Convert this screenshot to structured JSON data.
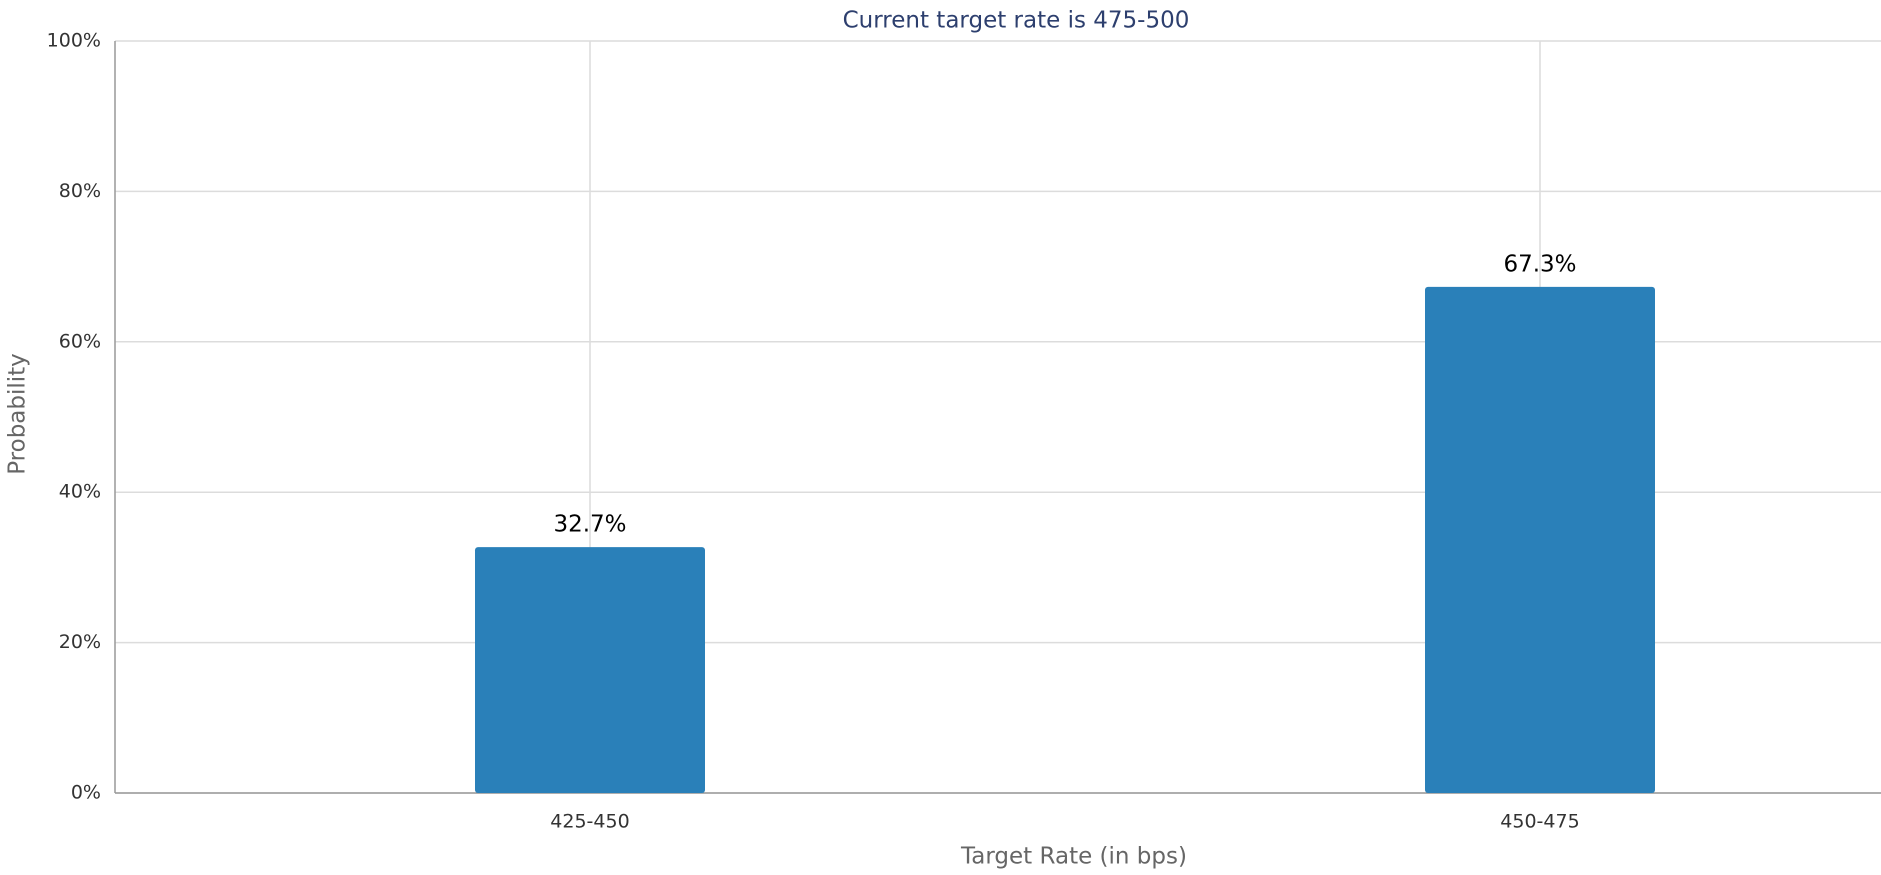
{
  "chart_data": {
    "type": "bar",
    "title": "Current target rate is 475-500",
    "x_label": "Target Rate (in bps)",
    "y_label": "Probability",
    "categories": [
      "425-450",
      "450-475"
    ],
    "values": [
      32.7,
      67.3
    ],
    "value_labels": [
      "32.7%",
      "67.3%"
    ],
    "color": "#2a80b9",
    "ylim": [
      0,
      100
    ],
    "yticks": [
      {
        "value": 0,
        "label": "0%"
      },
      {
        "value": 20,
        "label": "20%"
      },
      {
        "value": 40,
        "label": "40%"
      },
      {
        "value": 60,
        "label": "60%"
      },
      {
        "value": 80,
        "label": "80%"
      },
      {
        "value": 100,
        "label": "100%"
      }
    ],
    "grid": true
  }
}
